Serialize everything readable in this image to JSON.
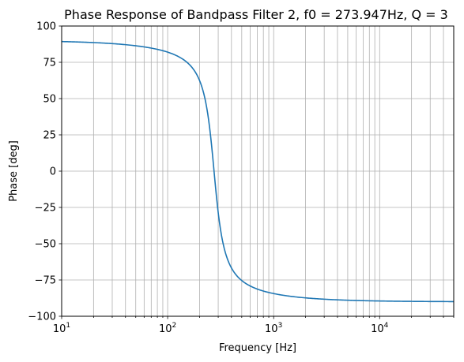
{
  "chart_data": {
    "type": "line",
    "title": "Phase Response of Bandpass Filter 2, f0 = 273.947Hz, Q = 3",
    "xlabel": "Frequency [Hz]",
    "ylabel": "Phase [deg]",
    "xscale": "log",
    "xlim": [
      10,
      50000
    ],
    "ylim": [
      -100,
      100
    ],
    "grid": "on (major and minor x, major y)",
    "x_ticks": [
      {
        "base": "10",
        "exp": "1"
      },
      {
        "base": "10",
        "exp": "2"
      },
      {
        "base": "10",
        "exp": "3"
      },
      {
        "base": "10",
        "exp": "4"
      }
    ],
    "y_ticks": [
      "−100",
      "−75",
      "−50",
      "−25",
      "0",
      "25",
      "50",
      "75",
      "100"
    ],
    "series": [
      {
        "color": "#1f77b4",
        "f0": 273.947,
        "Q": 3,
        "x": [
          10,
          20,
          50,
          100,
          150,
          200,
          250,
          273.947,
          300,
          350,
          400,
          500,
          700,
          1000,
          2000,
          5000,
          10000,
          20000,
          50000
        ],
        "y": [
          89.4,
          88.7,
          86.5,
          82.3,
          75.9,
          62.8,
          27.6,
          0,
          -26.5,
          -52.9,
          -66.0,
          -77.0,
          -84.1,
          -87.0,
          -88.8,
          -89.4,
          -89.7,
          -89.8,
          -89.9
        ]
      }
    ]
  }
}
